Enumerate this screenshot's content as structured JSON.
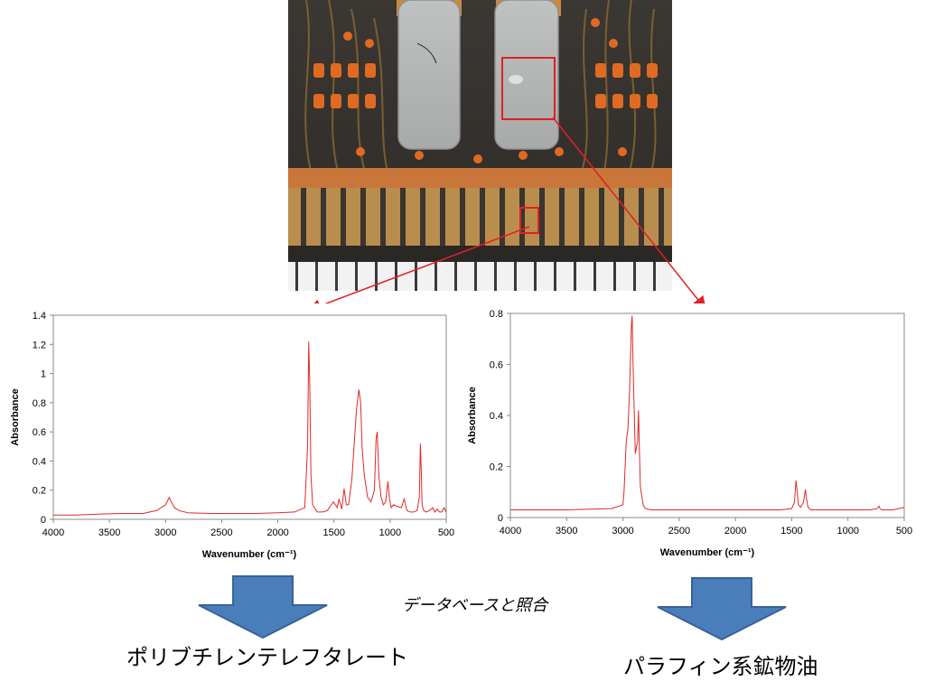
{
  "charts": {
    "left": {
      "type": "line",
      "color": "#e0282a",
      "ylabel": "Absorbance",
      "xlabel": "Wavenumber (cm⁻¹)",
      "xlim": [
        4000,
        500
      ],
      "ylim": [
        0,
        1.4
      ],
      "xticks": [
        "4000",
        "3500",
        "3000",
        "2500",
        "2000",
        "1500",
        "1000",
        "500"
      ],
      "yticks": [
        "0",
        "0.2",
        "0.4",
        "0.6",
        "0.8",
        "1",
        "1.2",
        "1.4"
      ]
    },
    "right": {
      "type": "line",
      "color": "#e0282a",
      "ylabel": "Absorbance",
      "xlabel": "Wavenumber (cm⁻¹)",
      "xlim": [
        4000,
        500
      ],
      "ylim": [
        0,
        0.8
      ],
      "xticks": [
        "4000",
        "3500",
        "3000",
        "2500",
        "2000",
        "1500",
        "1000",
        "500"
      ],
      "yticks": [
        "0",
        "0.2",
        "0.4",
        "0.6",
        "0.8"
      ]
    }
  },
  "chart_data": [
    {
      "type": "line",
      "title": "",
      "xlabel": "Wavenumber (cm⁻¹)",
      "ylabel": "Absorbance",
      "xlim": [
        4000,
        500
      ],
      "ylim": [
        0,
        1.4
      ],
      "series": [
        {
          "x": [
            4000,
            3800,
            3600,
            3400,
            3200,
            3080,
            3000,
            2968,
            2950,
            2920,
            2880,
            2800,
            2600,
            2400,
            2200,
            2000,
            1850,
            1760,
            1735,
            1725,
            1715,
            1705,
            1690,
            1650,
            1600,
            1560,
            1505,
            1470,
            1455,
            1430,
            1410,
            1390,
            1370,
            1340,
            1300,
            1278,
            1262,
            1250,
            1230,
            1200,
            1170,
            1140,
            1125,
            1115,
            1100,
            1080,
            1060,
            1040,
            1020,
            1005,
            990,
            970,
            940,
            900,
            875,
            850,
            820,
            790,
            760,
            740,
            730,
            723,
            715,
            700,
            680,
            650,
            620,
            600,
            580,
            560,
            540,
            520,
            500
          ],
          "y": [
            0.03,
            0.03,
            0.035,
            0.04,
            0.04,
            0.06,
            0.1,
            0.15,
            0.12,
            0.08,
            0.06,
            0.045,
            0.04,
            0.04,
            0.04,
            0.045,
            0.05,
            0.08,
            0.5,
            1.22,
            0.9,
            0.3,
            0.1,
            0.05,
            0.05,
            0.06,
            0.12,
            0.08,
            0.14,
            0.07,
            0.21,
            0.1,
            0.1,
            0.28,
            0.75,
            0.89,
            0.8,
            0.5,
            0.3,
            0.15,
            0.12,
            0.2,
            0.55,
            0.6,
            0.3,
            0.15,
            0.1,
            0.12,
            0.26,
            0.14,
            0.08,
            0.1,
            0.09,
            0.08,
            0.14,
            0.06,
            0.05,
            0.05,
            0.06,
            0.15,
            0.52,
            0.35,
            0.1,
            0.06,
            0.05,
            0.06,
            0.08,
            0.05,
            0.07,
            0.05,
            0.05,
            0.08,
            0.05
          ]
        }
      ]
    },
    {
      "type": "line",
      "title": "",
      "xlabel": "Wavenumber (cm⁻¹)",
      "ylabel": "Absorbance",
      "xlim": [
        4000,
        500
      ],
      "ylim": [
        0,
        0.8
      ],
      "series": [
        {
          "x": [
            4000,
            3500,
            3100,
            3000,
            2990,
            2970,
            2955,
            2940,
            2925,
            2918,
            2910,
            2890,
            2870,
            2862,
            2855,
            2845,
            2820,
            2800,
            2750,
            2700,
            2500,
            2200,
            2000,
            1800,
            1600,
            1500,
            1475,
            1462,
            1455,
            1440,
            1420,
            1395,
            1378,
            1370,
            1355,
            1330,
            1200,
            1000,
            800,
            740,
            725,
            715,
            700,
            600,
            500
          ],
          "y": [
            0.03,
            0.03,
            0.035,
            0.05,
            0.1,
            0.3,
            0.35,
            0.5,
            0.75,
            0.79,
            0.6,
            0.25,
            0.3,
            0.42,
            0.3,
            0.12,
            0.05,
            0.035,
            0.03,
            0.03,
            0.03,
            0.03,
            0.03,
            0.03,
            0.03,
            0.035,
            0.06,
            0.145,
            0.12,
            0.05,
            0.04,
            0.06,
            0.11,
            0.08,
            0.04,
            0.03,
            0.03,
            0.03,
            0.03,
            0.035,
            0.045,
            0.035,
            0.03,
            0.03,
            0.04
          ]
        }
      ]
    }
  ],
  "flow": {
    "note": "データベースと照合",
    "result_left": "ポリブチレンテレフタレート",
    "result_right": "パラフィン系鉱物油"
  },
  "colors": {
    "arrow_fill": "#4a7ebb",
    "arrow_stroke": "#3a6296",
    "highlight_box": "#e21f26",
    "connector": "#e21f26"
  }
}
